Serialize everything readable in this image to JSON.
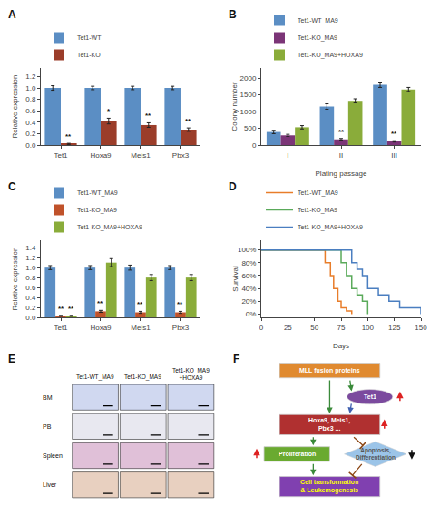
{
  "chart_data": [
    {
      "type": "bar",
      "title": "A",
      "categories": [
        "Tet1",
        "Hoxa9",
        "Meis1",
        "Pbx3"
      ],
      "series": [
        {
          "name": "Tet1-WT",
          "color": "#5b8ec4",
          "values": [
            1.0,
            1.0,
            1.0,
            1.0
          ],
          "errors": [
            0.04,
            0.03,
            0.03,
            0.03
          ]
        },
        {
          "name": "Tet1-KO",
          "color": "#9b3d2a",
          "values": [
            0.02,
            0.42,
            0.35,
            0.27
          ],
          "errors": [
            0.01,
            0.05,
            0.04,
            0.03
          ]
        }
      ],
      "annotations": [
        {
          "series": "Tet1-KO",
          "category": "Tet1",
          "text": "**"
        },
        {
          "series": "Tet1-KO",
          "category": "Hoxa9",
          "text": "*"
        },
        {
          "series": "Tet1-KO",
          "category": "Meis1",
          "text": "**"
        },
        {
          "series": "Tet1-KO",
          "category": "Pbx3",
          "text": "**"
        }
      ],
      "ylabel": "Relative expression",
      "ylim": [
        0,
        1.35
      ],
      "yticks": [
        {
          "value": 0,
          "label": "0.0"
        },
        0.2,
        0.4,
        0.6,
        0.8,
        {
          "value": 1,
          "label": "1.0"
        },
        1.2
      ],
      "grid": false,
      "legend": "top"
    },
    {
      "type": "bar",
      "title": "B",
      "categories": [
        "I",
        "II",
        "III"
      ],
      "series": [
        {
          "name": "Tet1-WT_MA9",
          "color": "#5b8ec4",
          "values": [
            390,
            1150,
            1800
          ],
          "errors": [
            50,
            80,
            80
          ]
        },
        {
          "name": "Tet1-KO_MA9",
          "color": "#7b3577",
          "values": [
            290,
            170,
            110
          ],
          "errors": [
            30,
            25,
            20
          ]
        },
        {
          "name": "Tet1-KO_MA9+HOXA9",
          "color": "#8aac3a",
          "values": [
            530,
            1320,
            1660
          ],
          "errors": [
            50,
            60,
            60
          ]
        }
      ],
      "annotations": [
        {
          "series": "Tet1-KO_MA9",
          "category": "II",
          "text": "**"
        },
        {
          "series": "Tet1-KO_MA9",
          "category": "III",
          "text": "**"
        }
      ],
      "xlabel": "Plating passage",
      "ylabel": "Colony number",
      "ylim": [
        0,
        2300
      ],
      "yticks": [
        0,
        500,
        1000,
        1500,
        2000
      ],
      "grid": false,
      "legend": "top"
    },
    {
      "type": "bar",
      "title": "C",
      "categories": [
        "Tet1",
        "Hoxa9",
        "Meis1",
        "Pbx3"
      ],
      "series": [
        {
          "name": "Tet1-WT_MA9",
          "color": "#5b8ec4",
          "values": [
            1.0,
            1.0,
            1.0,
            1.0
          ],
          "errors": [
            0.04,
            0.04,
            0.05,
            0.04
          ]
        },
        {
          "name": "Tet1-KO_MA9",
          "color": "#c0522a",
          "values": [
            0.03,
            0.12,
            0.1,
            0.1
          ],
          "errors": [
            0.01,
            0.02,
            0.02,
            0.02
          ]
        },
        {
          "name": "Tet1-KO_MA9+HOXA9",
          "color": "#8aac3a",
          "values": [
            0.03,
            1.1,
            0.8,
            0.8
          ],
          "errors": [
            0.01,
            0.08,
            0.06,
            0.06
          ]
        }
      ],
      "annotations": [
        {
          "series": "Tet1-KO_MA9",
          "category": "Tet1",
          "text": "**"
        },
        {
          "series": "Tet1-KO_MA9",
          "category": "Hoxa9",
          "text": "**"
        },
        {
          "series": "Tet1-KO_MA9",
          "category": "Meis1",
          "text": "**"
        },
        {
          "series": "Tet1-KO_MA9",
          "category": "Pbx3",
          "text": "**"
        },
        {
          "series": "Tet1-KO_MA9+HOXA9",
          "category": "Tet1",
          "text": "**"
        }
      ],
      "ylabel": "Relative expression",
      "ylim": [
        0,
        1.55
      ],
      "yticks": [
        {
          "value": 0,
          "label": "0.0"
        },
        0.2,
        0.4,
        0.6,
        0.8,
        {
          "value": 1,
          "label": "1.0"
        },
        1.2,
        1.4
      ],
      "grid": false,
      "legend": "top"
    },
    {
      "type": "step",
      "title": "D",
      "series": [
        {
          "name": "Tet1-WT_MA9",
          "color": "#e87d2a",
          "x": [
            0,
            55,
            60,
            65,
            68,
            72,
            75,
            80,
            85
          ],
          "values": [
            100,
            100,
            80,
            60,
            40,
            20,
            10,
            5,
            0
          ]
        },
        {
          "name": "Tet1-KO_MA9",
          "color": "#5aaa5a",
          "x": [
            0,
            70,
            75,
            80,
            85,
            90,
            95,
            100
          ],
          "values": [
            100,
            100,
            80,
            60,
            40,
            30,
            20,
            0
          ]
        },
        {
          "name": "Tet1-KO_MA9+HOXA9",
          "color": "#4a7ec0",
          "x": [
            0,
            75,
            85,
            90,
            95,
            100,
            110,
            120,
            130,
            150
          ],
          "values": [
            100,
            100,
            80,
            70,
            60,
            40,
            30,
            20,
            10,
            0
          ]
        }
      ],
      "xlabel": "Days",
      "ylabel": "Survival",
      "xlim": [
        0,
        150
      ],
      "xticks": [
        0,
        25,
        50,
        75,
        100,
        125,
        150
      ],
      "ylim": [
        -5,
        115
      ],
      "yticks": [
        {
          "value": 0,
          "label": "0%"
        },
        {
          "value": 20,
          "label": "20%"
        },
        {
          "value": 40,
          "label": "40%"
        },
        {
          "value": 60,
          "label": "60%"
        },
        {
          "value": 80,
          "label": "80%"
        },
        {
          "value": 100,
          "label": "100%"
        }
      ],
      "grid": false,
      "legend": "top"
    },
    {
      "type": "image_grid",
      "title": "E",
      "rows": [
        "BM",
        "PB",
        "Spleen",
        "Liver"
      ],
      "columns": [
        "Tet1-WT_MA9",
        "Tet1-KO_MA9",
        "Tet1-KO_MA9\n+HOXA9"
      ],
      "colors": [
        "#d0d8f0",
        "#e8e8f0",
        "#e0c0d8",
        "#e8d0c0"
      ]
    },
    {
      "type": "diagram",
      "title": "F",
      "nodes": [
        {
          "text": "MLL fusion proteins",
          "color": "#e08a30",
          "text_color": "white"
        },
        {
          "text": "Tet1",
          "color": "#7b4a9e",
          "text_color": "white"
        },
        {
          "text": "Hoxa9, Meis1,\nPbx3 ...",
          "color": "#b03030",
          "text_color": "white"
        },
        {
          "text": "Proliferation",
          "color": "#6aaa30",
          "text_color": "white"
        },
        {
          "text": "Apoptosis,\nDifferentiation",
          "color": "#9bc4e8",
          "text_color": "#555555"
        },
        {
          "text": "Cell transformation\n& Leukemogenesis",
          "color": "#8040b0",
          "text_color": "yellow"
        }
      ],
      "edges": [
        {
          "from": 0,
          "to": 1,
          "color": "#3a8a3a",
          "kind": "activation"
        },
        {
          "from": 0,
          "to": 2,
          "color": "#3a8a3a",
          "kind": "activation"
        },
        {
          "from": 1,
          "to": 2,
          "color": "#4060b0",
          "kind": "activation"
        },
        {
          "from": 2,
          "to": 3,
          "color": "#3a8a3a",
          "kind": "activation"
        },
        {
          "from": 2,
          "to": 4,
          "color": "#8b4513",
          "kind": "inhibition"
        },
        {
          "from": 3,
          "to": 5,
          "color": "#3a8a3a",
          "kind": "activation"
        },
        {
          "from": 4,
          "to": 5,
          "color": "#8b4513",
          "kind": "inhibition"
        }
      ],
      "marks": [
        {
          "node": 1,
          "direction": "up",
          "color": "#dd2222"
        },
        {
          "node": 2,
          "direction": "up",
          "color": "#dd2222"
        },
        {
          "node": 3,
          "direction": "up",
          "color": "#dd2222"
        },
        {
          "node": 4,
          "direction": "down",
          "color": "#111111"
        }
      ]
    }
  ]
}
